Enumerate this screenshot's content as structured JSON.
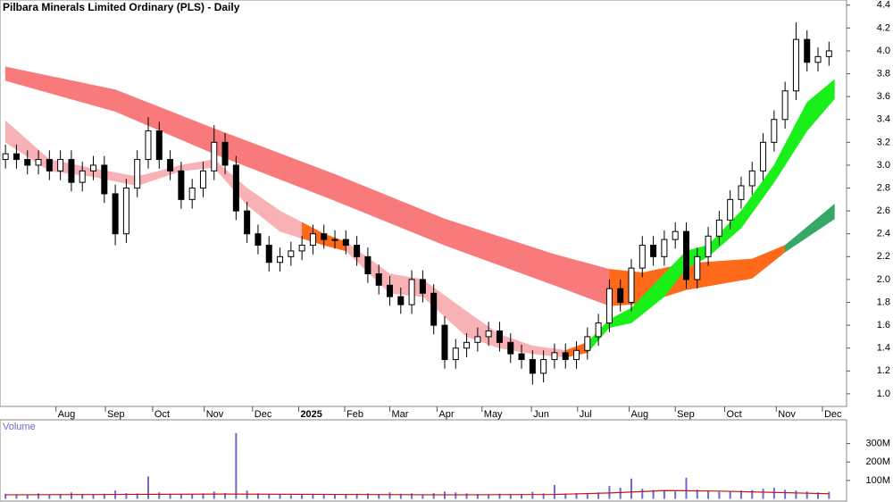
{
  "chart_data": [
    {
      "type": "candlestick",
      "title": "Pilbara Minerals Limited Ordinary (PLS) - Daily",
      "x": [
        0,
        1,
        2,
        3,
        4,
        5,
        6,
        7,
        8,
        9,
        10,
        11,
        12,
        13,
        14,
        15,
        16,
        17,
        18,
        19,
        20,
        21,
        22,
        23,
        24,
        25,
        26,
        27,
        28,
        29,
        30,
        31,
        32,
        33,
        34,
        35,
        36,
        37,
        38,
        39,
        40,
        41,
        42,
        43,
        44,
        45,
        46,
        47,
        48,
        49,
        50,
        51,
        52,
        53,
        54,
        55,
        56,
        57,
        58,
        59,
        60,
        61,
        62,
        63,
        64,
        65,
        66,
        67,
        68,
        69,
        70,
        71,
        72,
        73,
        74,
        75
      ],
      "open": [
        3.05,
        3.1,
        3.05,
        3.0,
        3.05,
        2.95,
        3.05,
        2.85,
        2.95,
        3.0,
        2.75,
        2.4,
        2.8,
        3.05,
        3.3,
        3.05,
        2.95,
        2.7,
        2.8,
        2.95,
        3.2,
        3.0,
        2.6,
        2.4,
        2.3,
        2.15,
        2.2,
        2.25,
        2.3,
        2.4,
        2.35,
        2.35,
        2.3,
        2.2,
        2.05,
        1.95,
        1.85,
        1.78,
        2.0,
        1.88,
        1.6,
        1.3,
        1.4,
        1.45,
        1.5,
        1.55,
        1.45,
        1.35,
        1.3,
        1.18,
        1.3,
        1.36,
        1.3,
        1.38,
        1.5,
        1.62,
        1.92,
        1.8,
        2.1,
        2.3,
        2.2,
        2.35,
        2.42,
        2.0,
        2.2,
        2.38,
        2.52,
        2.7,
        2.82,
        2.95,
        3.2,
        3.4,
        3.65,
        4.1,
        3.9,
        3.95
      ],
      "high": [
        3.18,
        3.18,
        3.13,
        3.13,
        3.13,
        3.13,
        3.13,
        3.03,
        3.08,
        3.08,
        2.83,
        2.88,
        3.13,
        3.42,
        3.38,
        3.13,
        3.03,
        2.88,
        3.03,
        3.35,
        3.28,
        3.08,
        2.68,
        2.48,
        2.38,
        2.28,
        2.33,
        2.38,
        2.48,
        2.48,
        2.43,
        2.43,
        2.38,
        2.28,
        2.13,
        2.03,
        1.93,
        2.08,
        2.08,
        1.96,
        1.68,
        1.48,
        1.53,
        1.58,
        1.63,
        1.63,
        1.53,
        1.43,
        1.38,
        1.38,
        1.44,
        1.44,
        1.46,
        1.58,
        1.7,
        2.0,
        2.0,
        2.18,
        2.38,
        2.38,
        2.43,
        2.5,
        2.5,
        2.28,
        2.46,
        2.6,
        2.78,
        2.9,
        3.03,
        3.28,
        3.48,
        3.73,
        4.25,
        4.18,
        4.03,
        4.08
      ],
      "low": [
        2.97,
        2.97,
        2.92,
        2.92,
        2.87,
        2.87,
        2.77,
        2.77,
        2.87,
        2.67,
        2.3,
        2.32,
        2.72,
        2.97,
        2.97,
        2.87,
        2.62,
        2.62,
        2.72,
        2.87,
        2.92,
        2.52,
        2.32,
        2.22,
        2.07,
        2.07,
        2.12,
        2.17,
        2.22,
        2.27,
        2.27,
        2.22,
        2.12,
        1.97,
        1.87,
        1.77,
        1.7,
        1.7,
        1.8,
        1.52,
        1.22,
        1.22,
        1.32,
        1.37,
        1.42,
        1.37,
        1.27,
        1.22,
        1.08,
        1.1,
        1.22,
        1.22,
        1.22,
        1.3,
        1.42,
        1.54,
        1.72,
        1.72,
        2.02,
        2.12,
        2.12,
        2.27,
        1.92,
        1.92,
        2.12,
        2.3,
        2.44,
        2.62,
        2.74,
        2.87,
        3.12,
        3.32,
        3.57,
        3.82,
        3.82,
        3.87
      ],
      "close": [
        3.1,
        3.05,
        3.0,
        3.05,
        2.95,
        3.05,
        2.85,
        2.95,
        3.0,
        2.75,
        2.4,
        2.8,
        3.05,
        3.3,
        3.05,
        2.95,
        2.7,
        2.8,
        2.95,
        3.2,
        3.0,
        2.6,
        2.4,
        2.3,
        2.15,
        2.2,
        2.25,
        2.3,
        2.4,
        2.35,
        2.35,
        2.3,
        2.2,
        2.05,
        1.95,
        1.85,
        1.78,
        2.0,
        1.88,
        1.6,
        1.3,
        1.4,
        1.45,
        1.5,
        1.55,
        1.45,
        1.35,
        1.3,
        1.18,
        1.3,
        1.36,
        1.3,
        1.38,
        1.5,
        1.62,
        1.92,
        1.8,
        2.1,
        2.3,
        2.2,
        2.35,
        2.42,
        2.0,
        2.2,
        2.38,
        2.52,
        2.7,
        2.82,
        2.95,
        3.2,
        3.4,
        3.65,
        4.1,
        3.9,
        3.95,
        4.0
      ],
      "bands": [
        {
          "color": "#f87a7a",
          "x": [
            0,
            10,
            19,
            30,
            40,
            50,
            55
          ],
          "upper": [
            3.86,
            3.66,
            3.32,
            2.92,
            2.53,
            2.22,
            2.09
          ],
          "lower": [
            3.74,
            3.47,
            3.1,
            2.69,
            2.3,
            1.95,
            1.77
          ]
        },
        {
          "color": "#ff6a1a",
          "x": [
            55,
            58,
            62,
            68,
            71
          ],
          "upper": [
            2.09,
            2.06,
            2.14,
            2.18,
            2.3
          ],
          "lower": [
            1.77,
            1.79,
            1.91,
            2.01,
            2.24
          ]
        },
        {
          "color": "#35a865",
          "x": [
            71,
            75.5
          ],
          "upper": [
            2.3,
            2.66
          ],
          "lower": [
            2.24,
            2.53
          ]
        },
        {
          "color": "#f8b2b6",
          "x": [
            0,
            4,
            8,
            12,
            16,
            19,
            22,
            25,
            27
          ],
          "upper": [
            3.39,
            3.05,
            2.97,
            2.9,
            3.0,
            3.05,
            2.8,
            2.6,
            2.5
          ],
          "lower": [
            3.2,
            2.95,
            2.9,
            2.82,
            2.95,
            2.98,
            2.65,
            2.42,
            2.36
          ]
        },
        {
          "color": "#ff6a1a",
          "x": [
            27,
            29,
            31
          ],
          "upper": [
            2.5,
            2.4,
            2.33
          ],
          "lower": [
            2.36,
            2.3,
            2.25
          ]
        },
        {
          "color": "#f8b2b6",
          "x": [
            31,
            35,
            38,
            42,
            45,
            48,
            51
          ],
          "upper": [
            2.33,
            2.05,
            2.0,
            1.72,
            1.52,
            1.42,
            1.38
          ],
          "lower": [
            2.25,
            1.88,
            1.85,
            1.5,
            1.4,
            1.35,
            1.32
          ]
        },
        {
          "color": "#ff6a1a",
          "x": [
            51,
            53
          ],
          "upper": [
            1.38,
            1.45
          ],
          "lower": [
            1.32,
            1.36
          ]
        },
        {
          "color": "#19f019",
          "x": [
            53,
            55,
            57,
            60,
            62,
            64,
            67,
            70,
            73,
            75.5
          ],
          "upper": [
            1.45,
            1.65,
            1.75,
            2.05,
            2.25,
            2.3,
            2.6,
            3.0,
            3.55,
            3.75
          ],
          "lower": [
            1.36,
            1.58,
            1.62,
            1.85,
            2.1,
            2.2,
            2.45,
            2.85,
            3.3,
            3.58
          ]
        }
      ],
      "xlim": [
        -0.5,
        76.6
      ],
      "xticks": [
        {
          "value": 4.6,
          "label": "Aug"
        },
        {
          "value": 9.1,
          "label": "Sep"
        },
        {
          "value": 13.4,
          "label": "Oct"
        },
        {
          "value": 18.1,
          "label": "Nov"
        },
        {
          "value": 22.5,
          "label": "Dec"
        },
        {
          "value": 26.7,
          "label": "2025"
        },
        {
          "value": 30.9,
          "label": "Feb"
        },
        {
          "value": 35.0,
          "label": "Mar"
        },
        {
          "value": 39.3,
          "label": "Apr"
        },
        {
          "value": 43.4,
          "label": "May"
        },
        {
          "value": 47.9,
          "label": "Jun"
        },
        {
          "value": 52.1,
          "label": "Jul"
        },
        {
          "value": 56.8,
          "label": "Aug"
        },
        {
          "value": 61.0,
          "label": "Sep"
        },
        {
          "value": 65.5,
          "label": "Oct"
        },
        {
          "value": 70.2,
          "label": "Nov"
        },
        {
          "value": 74.4,
          "label": "Dec"
        }
      ],
      "ylim": [
        0.89,
        4.445
      ],
      "yticks": [
        {
          "value": 1,
          "label": "1.0"
        },
        1.2,
        1.4,
        1.6,
        1.8,
        {
          "value": 2,
          "label": "2.0"
        },
        2.2,
        2.4,
        2.6,
        2.8,
        {
          "value": 3,
          "label": "3.0"
        },
        3.2,
        3.4,
        3.6,
        3.8,
        {
          "value": 4,
          "label": "4.0"
        },
        4.2,
        4.4
      ]
    },
    {
      "type": "bar",
      "title": "Volume",
      "color": "#6a6ad0",
      "values": [
        28,
        25,
        22,
        30,
        24,
        26,
        35,
        22,
        25,
        28,
        45,
        32,
        30,
        122,
        35,
        28,
        26,
        24,
        30,
        40,
        32,
        357,
        45,
        30,
        25,
        22,
        20,
        24,
        28,
        22,
        25,
        24,
        28,
        30,
        26,
        35,
        28,
        30,
        25,
        32,
        40,
        35,
        30,
        26,
        24,
        28,
        22,
        25,
        38,
        30,
        75,
        28,
        32,
        30,
        35,
        70,
        60,
        110,
        55,
        48,
        45,
        40,
        115,
        50,
        42,
        38,
        40,
        45,
        48,
        55,
        60,
        50,
        45,
        40,
        35,
        38
      ],
      "average": {
        "color": "#d01010",
        "x": [
          0,
          10,
          20,
          30,
          40,
          50,
          55,
          60,
          65,
          70,
          75
        ],
        "values": [
          22,
          24,
          26,
          24,
          22,
          24,
          32,
          45,
          42,
          35,
          28
        ]
      },
      "ylim": [
        0,
        429
      ],
      "yticks": [
        {
          "value": 100,
          "label": "100M"
        },
        {
          "value": 200,
          "label": "200M"
        },
        {
          "value": 300,
          "label": "300M"
        }
      ]
    }
  ]
}
